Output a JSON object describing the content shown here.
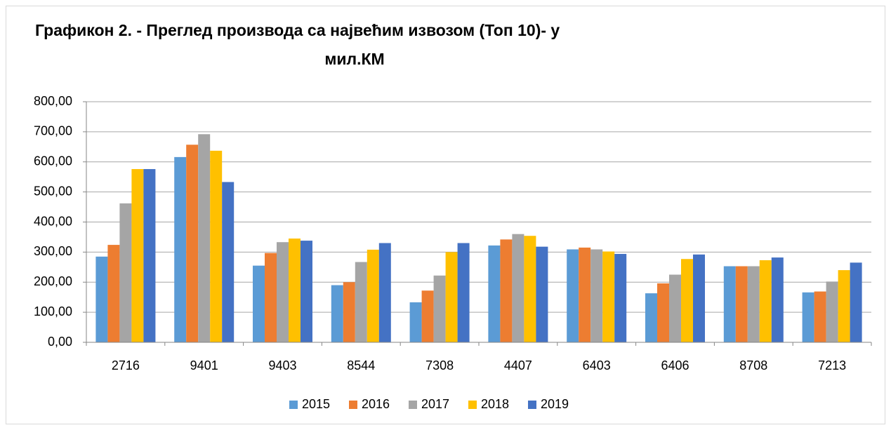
{
  "chart_data": {
    "type": "bar",
    "title": [
      "Графикон 2. - Преглед производа са највећим извозом (Топ 10)- у",
      "мил.КМ"
    ],
    "categories": [
      "2716",
      "9401",
      "9403",
      "8544",
      "7308",
      "4407",
      "6403",
      "6406",
      "8708",
      "7213"
    ],
    "series": [
      {
        "name": "2015",
        "color": "#5b9bd5",
        "values": [
          285,
          616,
          255,
          190,
          133,
          322,
          309,
          163,
          253,
          166
        ]
      },
      {
        "name": "2016",
        "color": "#ed7d31",
        "values": [
          324,
          657,
          297,
          200,
          172,
          342,
          315,
          196,
          253,
          169
        ]
      },
      {
        "name": "2017",
        "color": "#a5a5a5",
        "values": [
          462,
          692,
          333,
          267,
          222,
          360,
          309,
          225,
          253,
          202
        ]
      },
      {
        "name": "2018",
        "color": "#ffc000",
        "values": [
          576,
          637,
          345,
          308,
          300,
          354,
          302,
          277,
          273,
          240
        ]
      },
      {
        "name": "2019",
        "color": "#4472c4",
        "values": [
          576,
          533,
          338,
          330,
          330,
          318,
          294,
          292,
          282,
          265
        ]
      }
    ],
    "ylim": [
      0,
      800
    ],
    "yticks": [
      {
        "value": 0,
        "label": "0,00"
      },
      {
        "value": 100,
        "label": "100,00"
      },
      {
        "value": 200,
        "label": "200,00"
      },
      {
        "value": 300,
        "label": "300,00"
      },
      {
        "value": 400,
        "label": "400,00"
      },
      {
        "value": 500,
        "label": "500,00"
      },
      {
        "value": 600,
        "label": "600,00"
      },
      {
        "value": 700,
        "label": "700,00"
      },
      {
        "value": 800,
        "label": "800,00"
      }
    ],
    "grid": true,
    "legend": "bottom"
  }
}
